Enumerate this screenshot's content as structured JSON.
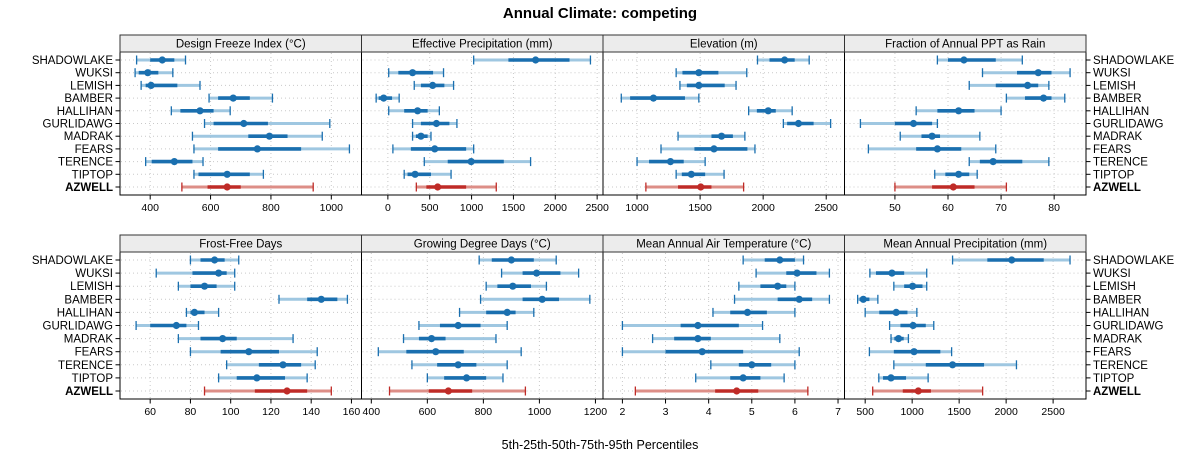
{
  "title": "Annual Climate: competing",
  "caption": "5th-25th-50th-75th-95th Percentiles",
  "percentile_labels": [
    "5th",
    "25th",
    "50th",
    "75th",
    "95th"
  ],
  "sites": [
    "SHADOWLAKE",
    "WUKSI",
    "LEMISH",
    "BAMBER",
    "HALLIHAN",
    "GURLIDAWG",
    "MADRAK",
    "FEARS",
    "TERENCE",
    "TIPTOP",
    "AZWELL"
  ],
  "highlight_site": "AZWELL",
  "colors": {
    "series": "#1a6faf",
    "series_light": "#9fc7e1",
    "highlight": "#bf2b27",
    "highlight_light": "#dd8e87",
    "strip_bg": "#ececec",
    "strip_border": "#333333",
    "panel_border": "#000000",
    "grid": "#c9c9c9",
    "tick": "#000000"
  },
  "chart_data": {
    "type": "dotplot",
    "layout": {
      "rows": 2,
      "cols": 4,
      "grid": "dotted",
      "x_scales": "free"
    },
    "panels": [
      {
        "title": "Design Freeze Index (°C)",
        "ticks": [
          400,
          600,
          800,
          1000
        ],
        "xlim": [
          300,
          1100
        ],
        "values": [
          [
            355,
            400,
            440,
            480,
            517
          ],
          [
            350,
            362,
            392,
            427,
            475
          ],
          [
            370,
            385,
            403,
            490,
            565
          ],
          [
            595,
            625,
            675,
            730,
            805
          ],
          [
            470,
            500,
            565,
            610,
            665
          ],
          [
            580,
            610,
            710,
            790,
            995
          ],
          [
            540,
            725,
            795,
            855,
            970
          ],
          [
            545,
            625,
            755,
            900,
            1060
          ],
          [
            385,
            405,
            480,
            540,
            575
          ],
          [
            545,
            560,
            655,
            730,
            775
          ],
          [
            505,
            590,
            655,
            700,
            940
          ]
        ]
      },
      {
        "title": "Effective Precipitation (mm)",
        "ticks": [
          0,
          500,
          1000,
          1500,
          2000,
          2500
        ],
        "xlim": [
          -315,
          2570
        ],
        "values": [
          [
            1025,
            1440,
            1765,
            2170,
            2420
          ],
          [
            10,
            125,
            295,
            540,
            665
          ],
          [
            315,
            395,
            535,
            675,
            785
          ],
          [
            -140,
            -110,
            -50,
            50,
            135
          ],
          [
            10,
            195,
            355,
            475,
            615
          ],
          [
            295,
            395,
            580,
            735,
            825
          ],
          [
            295,
            335,
            395,
            475,
            515
          ],
          [
            60,
            275,
            560,
            935,
            1025
          ],
          [
            435,
            715,
            995,
            1385,
            1705
          ],
          [
            195,
            235,
            325,
            515,
            755
          ],
          [
            340,
            460,
            595,
            935,
            1295
          ]
        ]
      },
      {
        "title": "Elevation (m)",
        "ticks": [
          1000,
          1500,
          2000,
          2500
        ],
        "xlim": [
          730,
          2645
        ],
        "values": [
          [
            1955,
            2050,
            2170,
            2250,
            2365
          ],
          [
            1310,
            1360,
            1490,
            1645,
            1870
          ],
          [
            1340,
            1395,
            1490,
            1695,
            1785
          ],
          [
            875,
            945,
            1130,
            1380,
            1490
          ],
          [
            1885,
            1950,
            2040,
            2100,
            2230
          ],
          [
            2160,
            2190,
            2280,
            2400,
            2535
          ],
          [
            1325,
            1590,
            1670,
            1760,
            1855
          ],
          [
            1190,
            1455,
            1610,
            1875,
            1935
          ],
          [
            1000,
            1095,
            1265,
            1370,
            1540
          ],
          [
            1310,
            1355,
            1430,
            1540,
            1690
          ],
          [
            1070,
            1325,
            1505,
            1590,
            1845
          ]
        ]
      },
      {
        "title": "Fraction of Annual PPT as Rain",
        "ticks": [
          50,
          60,
          70,
          80
        ],
        "xlim": [
          40.5,
          86
        ],
        "values": [
          [
            58,
            60,
            63,
            69,
            74
          ],
          [
            66.5,
            73,
            77,
            79.5,
            83
          ],
          [
            64,
            69,
            75,
            77,
            79
          ],
          [
            71,
            74.5,
            78,
            79.5,
            82
          ],
          [
            54,
            58,
            62,
            65,
            70
          ],
          [
            43.5,
            50,
            53.5,
            57,
            58
          ],
          [
            51,
            55,
            57,
            58.5,
            66
          ],
          [
            45,
            54,
            58,
            62.5,
            69
          ],
          [
            64,
            66,
            68.5,
            74,
            79
          ],
          [
            57.5,
            59.5,
            62,
            64,
            65.5
          ],
          [
            50,
            57,
            61,
            65,
            71
          ]
        ]
      },
      {
        "title": "Frost-Free Days",
        "ticks": [
          60,
          80,
          100,
          120,
          140,
          160
        ],
        "xlim": [
          45,
          165
        ],
        "values": [
          [
            80,
            85,
            92,
            97,
            104
          ],
          [
            63,
            81,
            94,
            98,
            102
          ],
          [
            74,
            80,
            87,
            93,
            102
          ],
          [
            124,
            138,
            145,
            153,
            158
          ],
          [
            78,
            80,
            82,
            87,
            94
          ],
          [
            53,
            60,
            73,
            78,
            84
          ],
          [
            74,
            85,
            96,
            103,
            131
          ],
          [
            80,
            95,
            109,
            124,
            143
          ],
          [
            98,
            114,
            126,
            135,
            142
          ],
          [
            94,
            103,
            113,
            127,
            138
          ],
          [
            87,
            112,
            128,
            138,
            150
          ]
        ]
      },
      {
        "title": "Growing Degree Days (°C)",
        "ticks": [
          400,
          600,
          800,
          1000,
          1200
        ],
        "xlim": [
          365,
          1227
        ],
        "values": [
          [
            785,
            830,
            900,
            980,
            1060
          ],
          [
            865,
            940,
            990,
            1075,
            1140
          ],
          [
            810,
            850,
            905,
            970,
            1025
          ],
          [
            790,
            940,
            1010,
            1070,
            1180
          ],
          [
            715,
            810,
            885,
            915,
            980
          ],
          [
            570,
            645,
            710,
            790,
            885
          ],
          [
            515,
            570,
            615,
            665,
            845
          ],
          [
            425,
            525,
            630,
            730,
            935
          ],
          [
            545,
            635,
            710,
            775,
            885
          ],
          [
            600,
            660,
            740,
            810,
            870
          ],
          [
            465,
            605,
            675,
            760,
            950
          ]
        ]
      },
      {
        "title": "Mean Annual Air Temperature (°C)",
        "ticks": [
          2,
          3,
          4,
          5,
          6,
          7
        ],
        "xlim": [
          1.55,
          7.15
        ],
        "values": [
          [
            4.8,
            5.3,
            5.65,
            6.0,
            6.2
          ],
          [
            5.1,
            5.8,
            6.05,
            6.5,
            6.8
          ],
          [
            4.7,
            5.2,
            5.6,
            5.8,
            6.0
          ],
          [
            4.6,
            5.6,
            6.1,
            6.4,
            6.8
          ],
          [
            4.1,
            4.5,
            4.9,
            5.35,
            6.0
          ],
          [
            2.0,
            3.35,
            3.75,
            4.7,
            5.25
          ],
          [
            2.7,
            3.2,
            3.75,
            4.05,
            5.65
          ],
          [
            2.0,
            3.0,
            3.85,
            4.8,
            6.1
          ],
          [
            4.05,
            4.7,
            5.0,
            5.45,
            6.0
          ],
          [
            3.7,
            4.5,
            4.8,
            5.2,
            5.75
          ],
          [
            2.3,
            4.15,
            4.65,
            5.15,
            6.3
          ]
        ]
      },
      {
        "title": "Mean Annual Precipitation (mm)",
        "ticks": [
          500,
          1000,
          1500,
          2000,
          2500
        ],
        "xlim": [
          280,
          2850
        ],
        "values": [
          [
            1430,
            1800,
            2060,
            2400,
            2680
          ],
          [
            550,
            615,
            785,
            915,
            1155
          ],
          [
            805,
            915,
            1005,
            1110,
            1155
          ],
          [
            420,
            440,
            480,
            545,
            635
          ],
          [
            500,
            650,
            830,
            950,
            1050
          ],
          [
            760,
            875,
            1010,
            1145,
            1230
          ],
          [
            775,
            810,
            855,
            910,
            960
          ],
          [
            545,
            805,
            1020,
            1300,
            1420
          ],
          [
            805,
            1145,
            1430,
            1765,
            2110
          ],
          [
            645,
            690,
            775,
            935,
            1170
          ],
          [
            580,
            900,
            1065,
            1200,
            1750
          ]
        ]
      }
    ]
  }
}
